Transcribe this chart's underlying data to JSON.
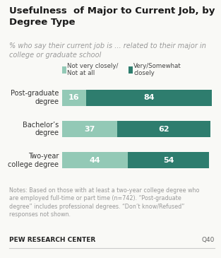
{
  "title": "Usefulness  of Major to Current Job, by\nDegree Type",
  "subtitle": "% who say their current job is ... related to their major in\ncollege or graduate school",
  "categories": [
    "Post-graduate\ndegree",
    "Bachelor’s\ndegree",
    "Two-year\ncollege degree"
  ],
  "not_closely": [
    16,
    37,
    44
  ],
  "very_closely": [
    84,
    62,
    54
  ],
  "color_not_closely": "#93c9b6",
  "color_very_closely": "#2e7d6e",
  "legend_not_closely": "Not very closely/\nNot at all",
  "legend_very_closely": "Very/Somewhat\nclosely",
  "notes": "Notes: Based on those with at least a two-year college degree who\nare employed full-time or part time (n=742). “Post-graduate\ndegree” includes professional degrees. “Don’t know/Refused”\nresponses not shown.",
  "source": "PEW RESEARCH CENTER",
  "question": "Q40",
  "bg_color": "#f9f9f6",
  "title_color": "#1a1a1a",
  "subtitle_color": "#999999",
  "note_color": "#999999",
  "bar_max": 100,
  "bar_xleft": 0.28
}
